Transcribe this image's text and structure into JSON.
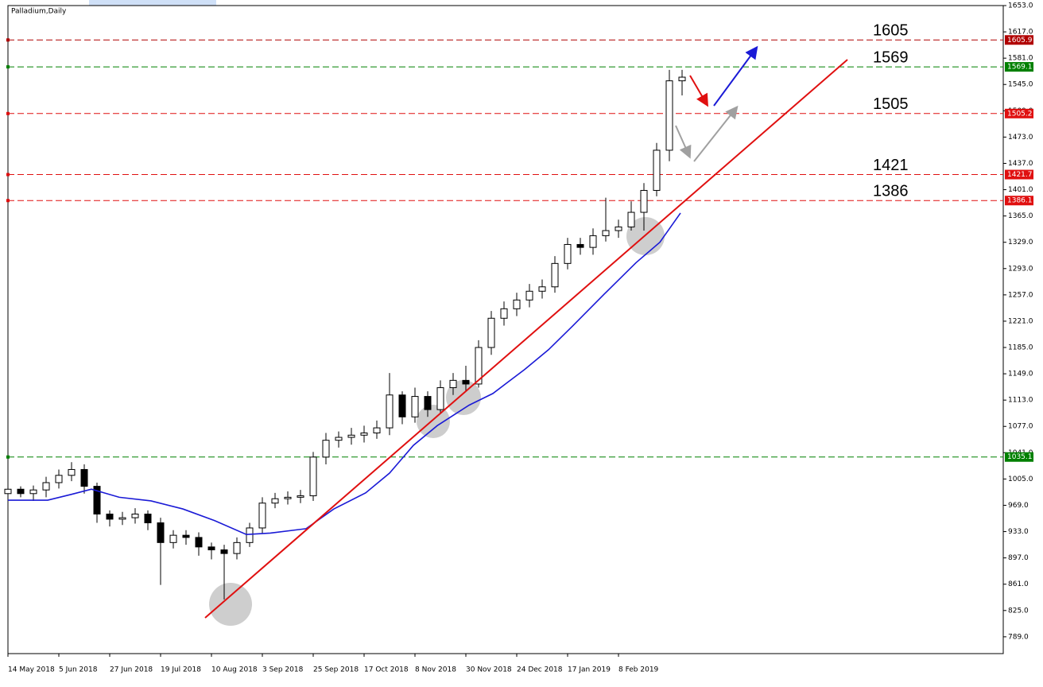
{
  "chart_data": {
    "type": "candlestick",
    "title": "Palladium,Daily",
    "xlim": [
      0,
      313
    ],
    "ylim": [
      766,
      1653
    ],
    "xticks": [
      {
        "value": 0,
        "label": "14 May 2018"
      },
      {
        "value": 16,
        "label": "5 Jun 2018"
      },
      {
        "value": 32,
        "label": "27 Jun 2018"
      },
      {
        "value": 48,
        "label": "19 Jul 2018"
      },
      {
        "value": 64,
        "label": "10 Aug 2018"
      },
      {
        "value": 80,
        "label": "3 Sep 2018"
      },
      {
        "value": 96,
        "label": "25 Sep 2018"
      },
      {
        "value": 112,
        "label": "17 Oct 2018"
      },
      {
        "value": 128,
        "label": "8 Nov 2018"
      },
      {
        "value": 144,
        "label": "30 Nov 2018"
      },
      {
        "value": 160,
        "label": "24 Dec 2018"
      },
      {
        "value": 176,
        "label": "17 Jan 2019"
      },
      {
        "value": 192,
        "label": "8 Feb 2019"
      }
    ],
    "yticks": [
      {
        "value": 789,
        "label": "789.0"
      },
      {
        "value": 825,
        "label": "825.0"
      },
      {
        "value": 861,
        "label": "861.0"
      },
      {
        "value": 897,
        "label": "897.0"
      },
      {
        "value": 933,
        "label": "933.0"
      },
      {
        "value": 969,
        "label": "969.0"
      },
      {
        "value": 1005,
        "label": "1005.0"
      },
      {
        "value": 1041,
        "label": "1041.0"
      },
      {
        "value": 1077,
        "label": "1077.0"
      },
      {
        "value": 1113,
        "label": "1113.0"
      },
      {
        "value": 1149,
        "label": "1149.0"
      },
      {
        "value": 1185,
        "label": "1185.0"
      },
      {
        "value": 1221,
        "label": "1221.0"
      },
      {
        "value": 1257,
        "label": "1257.0"
      },
      {
        "value": 1293,
        "label": "1293.0"
      },
      {
        "value": 1329,
        "label": "1329.0"
      },
      {
        "value": 1365,
        "label": "1365.0"
      },
      {
        "value": 1401,
        "label": "1401.0"
      },
      {
        "value": 1437,
        "label": "1437.0"
      },
      {
        "value": 1473,
        "label": "1473.0"
      },
      {
        "value": 1509,
        "label": "1509.0"
      },
      {
        "value": 1545,
        "label": "1545.0"
      },
      {
        "value": 1581,
        "label": "1581.0"
      },
      {
        "value": 1617,
        "label": "1617.0"
      },
      {
        "value": 1653,
        "label": "1653.0"
      }
    ],
    "candles": {
      "x": [
        0,
        4,
        8,
        12,
        16,
        20,
        24,
        28,
        32,
        36,
        40,
        44,
        48,
        52,
        56,
        60,
        64,
        68,
        72,
        76,
        80,
        84,
        88,
        92,
        96,
        100,
        104,
        108,
        112,
        116,
        120,
        124,
        128,
        132,
        136,
        140,
        144,
        148,
        152,
        156,
        160,
        164,
        168,
        172,
        176,
        180,
        184,
        188,
        192,
        196,
        200,
        204,
        208,
        212
      ],
      "open": [
        985,
        991,
        985,
        990,
        1000,
        1010,
        1018,
        995,
        957,
        950,
        952,
        957,
        945,
        918,
        928,
        925,
        912,
        908,
        903,
        918,
        938,
        972,
        978,
        980,
        982,
        1035,
        1058,
        1062,
        1065,
        1068,
        1075,
        1120,
        1090,
        1118,
        1100,
        1130,
        1140,
        1135,
        1185,
        1225,
        1238,
        1250,
        1262,
        1268,
        1300,
        1326,
        1322,
        1338,
        1345,
        1350,
        1370,
        1400,
        1455,
        1550
      ],
      "high": [
        998,
        995,
        996,
        1008,
        1018,
        1028,
        1025,
        1000,
        962,
        960,
        965,
        962,
        952,
        935,
        935,
        932,
        918,
        915,
        925,
        945,
        980,
        986,
        988,
        990,
        1042,
        1068,
        1070,
        1075,
        1078,
        1085,
        1150,
        1125,
        1130,
        1125,
        1140,
        1150,
        1160,
        1195,
        1235,
        1248,
        1260,
        1272,
        1278,
        1310,
        1335,
        1335,
        1348,
        1390,
        1360,
        1385,
        1410,
        1465,
        1565,
        1565
      ],
      "low": [
        975,
        980,
        975,
        980,
        992,
        1002,
        985,
        945,
        940,
        942,
        944,
        935,
        860,
        910,
        915,
        900,
        895,
        840,
        895,
        912,
        930,
        965,
        970,
        972,
        975,
        1025,
        1048,
        1052,
        1055,
        1060,
        1065,
        1080,
        1082,
        1090,
        1095,
        1120,
        1125,
        1130,
        1175,
        1215,
        1228,
        1240,
        1252,
        1260,
        1292,
        1312,
        1312,
        1330,
        1335,
        1345,
        1345,
        1392,
        1440,
        1530
      ],
      "close": [
        991,
        985,
        990,
        1000,
        1010,
        1018,
        995,
        957,
        950,
        952,
        957,
        945,
        918,
        928,
        925,
        912,
        908,
        903,
        918,
        938,
        972,
        978,
        980,
        982,
        1035,
        1058,
        1062,
        1065,
        1068,
        1075,
        1120,
        1090,
        1118,
        1100,
        1130,
        1140,
        1135,
        1185,
        1225,
        1238,
        1250,
        1262,
        1268,
        1300,
        1326,
        1322,
        1338,
        1345,
        1350,
        1370,
        1400,
        1455,
        1550,
        1555
      ]
    },
    "moving_average": {
      "color": "#1a1ad6",
      "x": [
        0,
        12.5,
        20,
        26.25,
        35,
        45,
        55,
        65,
        75,
        82.5,
        93.75,
        102.5,
        112.5,
        120,
        127.5,
        135,
        145,
        152.5,
        162.5,
        170,
        177.5,
        187.5,
        197.5,
        205,
        211.5
      ],
      "values": [
        976,
        976,
        984,
        991,
        980,
        975,
        964,
        948,
        929,
        931,
        937,
        964,
        986,
        1013,
        1051,
        1078,
        1106,
        1122,
        1155,
        1182,
        1214,
        1258,
        1301,
        1329,
        1369
      ]
    },
    "trendline": {
      "color": "#e01010",
      "x": [
        62,
        264
      ],
      "values": [
        815,
        1579
      ]
    },
    "levels": [
      {
        "value": 1605.9,
        "label": "1605.9",
        "text": "1605",
        "color": "#b00000"
      },
      {
        "value": 1569.1,
        "label": "1569.1",
        "text": "1569",
        "color": "#008000"
      },
      {
        "value": 1505.2,
        "label": "1505.2",
        "text": "1505",
        "color": "#e01010"
      },
      {
        "value": 1421.7,
        "label": "1421.7",
        "text": "1421",
        "color": "#e01010"
      },
      {
        "value": 1386.1,
        "label": "1386.1",
        "text": "1386",
        "color": "#e01010"
      },
      {
        "value": 1035.1,
        "label": "1035.1",
        "color": "#008000"
      }
    ]
  }
}
